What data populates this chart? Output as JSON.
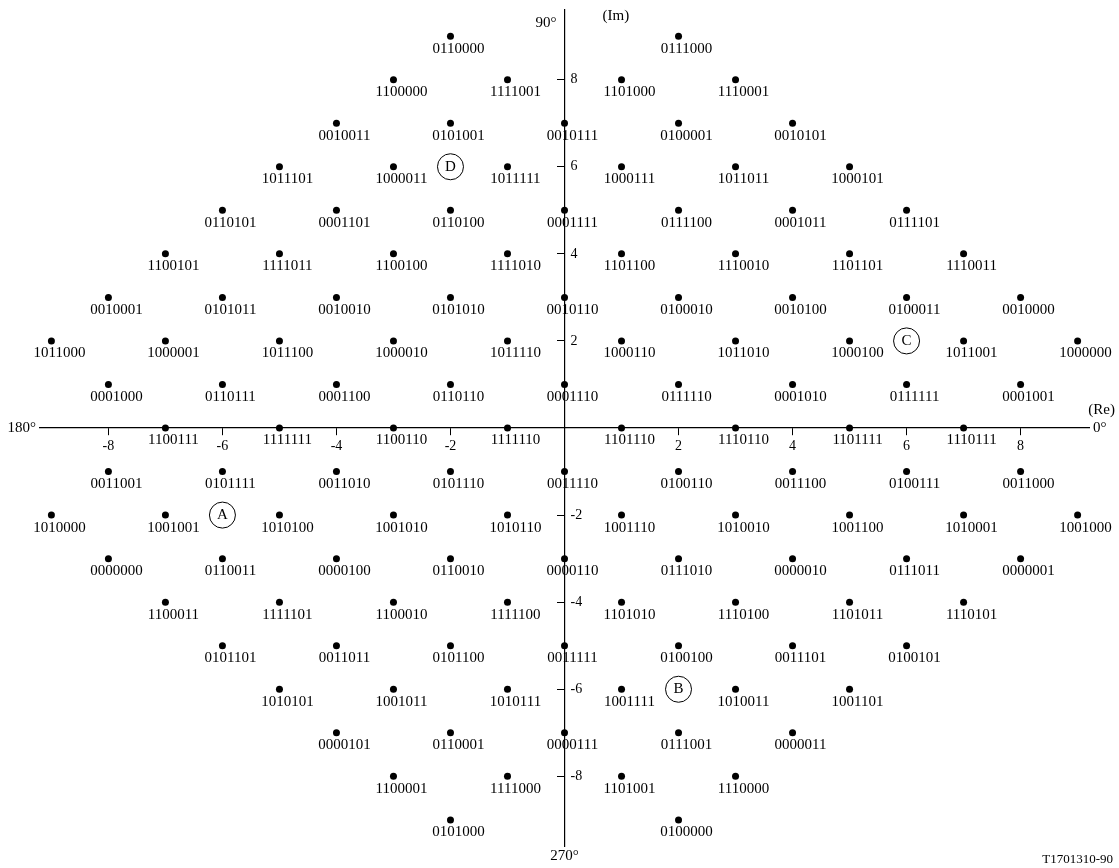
{
  "chart_data": {
    "type": "scatter",
    "xlabel": "(Re)",
    "ylabel": "(Im)",
    "color": "#000000",
    "marker": "circle",
    "xlim": [
      -9.2,
      9.2
    ],
    "ylim": [
      -9.6,
      9.6
    ],
    "xticks": [
      -8,
      -6,
      -4,
      -2,
      2,
      4,
      6,
      8
    ],
    "yticks": [
      -8,
      -6,
      -4,
      -2,
      2,
      4,
      6,
      8
    ],
    "annotations": [
      "90°",
      "180°",
      "0°",
      "270°",
      {
        "text": "A",
        "x": -6,
        "y": -2
      },
      {
        "text": "B",
        "x": 2,
        "y": -6
      },
      {
        "text": "C",
        "x": 6,
        "y": 2
      },
      {
        "text": "D",
        "x": -2,
        "y": 6
      },
      "T1701310-90"
    ],
    "series": [
      {
        "name": "0110000",
        "x": [
          -2
        ],
        "values": [
          9
        ]
      },
      {
        "name": "0111000",
        "x": [
          2
        ],
        "values": [
          9
        ]
      },
      {
        "name": "1100000",
        "x": [
          -3
        ],
        "values": [
          8
        ]
      },
      {
        "name": "1111001",
        "x": [
          -1
        ],
        "values": [
          8
        ]
      },
      {
        "name": "1101000",
        "x": [
          1
        ],
        "values": [
          8
        ]
      },
      {
        "name": "1110001",
        "x": [
          3
        ],
        "values": [
          8
        ]
      },
      {
        "name": "0010011",
        "x": [
          -4
        ],
        "values": [
          7
        ]
      },
      {
        "name": "0101001",
        "x": [
          -2
        ],
        "values": [
          7
        ]
      },
      {
        "name": "0010111",
        "x": [
          0
        ],
        "values": [
          7
        ]
      },
      {
        "name": "0100001",
        "x": [
          2
        ],
        "values": [
          7
        ]
      },
      {
        "name": "0010101",
        "x": [
          4
        ],
        "values": [
          7
        ]
      },
      {
        "name": "1011101",
        "x": [
          -5
        ],
        "values": [
          6
        ]
      },
      {
        "name": "1000011",
        "x": [
          -3
        ],
        "values": [
          6
        ]
      },
      {
        "name": "1011111",
        "x": [
          -1
        ],
        "values": [
          6
        ]
      },
      {
        "name": "1000111",
        "x": [
          1
        ],
        "values": [
          6
        ]
      },
      {
        "name": "1011011",
        "x": [
          3
        ],
        "values": [
          6
        ]
      },
      {
        "name": "1000101",
        "x": [
          5
        ],
        "values": [
          6
        ]
      },
      {
        "name": "0110101",
        "x": [
          -6
        ],
        "values": [
          5
        ]
      },
      {
        "name": "0001101",
        "x": [
          -4
        ],
        "values": [
          5
        ]
      },
      {
        "name": "0110100",
        "x": [
          -2
        ],
        "values": [
          5
        ]
      },
      {
        "name": "0001111",
        "x": [
          0
        ],
        "values": [
          5
        ]
      },
      {
        "name": "0111100",
        "x": [
          2
        ],
        "values": [
          5
        ]
      },
      {
        "name": "0001011",
        "x": [
          4
        ],
        "values": [
          5
        ]
      },
      {
        "name": "0111101",
        "x": [
          6
        ],
        "values": [
          5
        ]
      },
      {
        "name": "1100101",
        "x": [
          -7
        ],
        "values": [
          4
        ]
      },
      {
        "name": "1111011",
        "x": [
          -5
        ],
        "values": [
          4
        ]
      },
      {
        "name": "1100100",
        "x": [
          -3
        ],
        "values": [
          4
        ]
      },
      {
        "name": "1111010",
        "x": [
          -1
        ],
        "values": [
          4
        ]
      },
      {
        "name": "1101100",
        "x": [
          1
        ],
        "values": [
          4
        ]
      },
      {
        "name": "1110010",
        "x": [
          3
        ],
        "values": [
          4
        ]
      },
      {
        "name": "1101101",
        "x": [
          5
        ],
        "values": [
          4
        ]
      },
      {
        "name": "1110011",
        "x": [
          7
        ],
        "values": [
          4
        ]
      },
      {
        "name": "0010001",
        "x": [
          -8
        ],
        "values": [
          3
        ]
      },
      {
        "name": "0101011",
        "x": [
          -6
        ],
        "values": [
          3
        ]
      },
      {
        "name": "0010010",
        "x": [
          -4
        ],
        "values": [
          3
        ]
      },
      {
        "name": "0101010",
        "x": [
          -2
        ],
        "values": [
          3
        ]
      },
      {
        "name": "0010110",
        "x": [
          0
        ],
        "values": [
          3
        ]
      },
      {
        "name": "0100010",
        "x": [
          2
        ],
        "values": [
          3
        ]
      },
      {
        "name": "0010100",
        "x": [
          4
        ],
        "values": [
          3
        ]
      },
      {
        "name": "0100011",
        "x": [
          6
        ],
        "values": [
          3
        ]
      },
      {
        "name": "0010000",
        "x": [
          8
        ],
        "values": [
          3
        ]
      },
      {
        "name": "1011000",
        "x": [
          -9
        ],
        "values": [
          2
        ]
      },
      {
        "name": "1000001",
        "x": [
          -7
        ],
        "values": [
          2
        ]
      },
      {
        "name": "1011100",
        "x": [
          -5
        ],
        "values": [
          2
        ]
      },
      {
        "name": "1000010",
        "x": [
          -3
        ],
        "values": [
          2
        ]
      },
      {
        "name": "1011110",
        "x": [
          -1
        ],
        "values": [
          2
        ]
      },
      {
        "name": "1000110",
        "x": [
          1
        ],
        "values": [
          2
        ]
      },
      {
        "name": "1011010",
        "x": [
          3
        ],
        "values": [
          2
        ]
      },
      {
        "name": "1000100",
        "x": [
          5
        ],
        "values": [
          2
        ]
      },
      {
        "name": "1011001",
        "x": [
          7
        ],
        "values": [
          2
        ]
      },
      {
        "name": "1000000",
        "x": [
          9
        ],
        "values": [
          2
        ]
      },
      {
        "name": "0001000",
        "x": [
          -8
        ],
        "values": [
          1
        ]
      },
      {
        "name": "0110111",
        "x": [
          -6
        ],
        "values": [
          1
        ]
      },
      {
        "name": "0001100",
        "x": [
          -4
        ],
        "values": [
          1
        ]
      },
      {
        "name": "0110110",
        "x": [
          -2
        ],
        "values": [
          1
        ]
      },
      {
        "name": "0001110",
        "x": [
          0
        ],
        "values": [
          1
        ]
      },
      {
        "name": "0111110",
        "x": [
          2
        ],
        "values": [
          1
        ]
      },
      {
        "name": "0001010",
        "x": [
          4
        ],
        "values": [
          1
        ]
      },
      {
        "name": "0111111",
        "x": [
          6
        ],
        "values": [
          1
        ]
      },
      {
        "name": "0001001",
        "x": [
          8
        ],
        "values": [
          1
        ]
      },
      {
        "name": "1100111",
        "x": [
          -7
        ],
        "values": [
          0
        ]
      },
      {
        "name": "1111111",
        "x": [
          -5
        ],
        "values": [
          0
        ]
      },
      {
        "name": "1100110",
        "x": [
          -3
        ],
        "values": [
          0
        ]
      },
      {
        "name": "1111110",
        "x": [
          -1
        ],
        "values": [
          0
        ]
      },
      {
        "name": "1101110",
        "x": [
          1
        ],
        "values": [
          0
        ]
      },
      {
        "name": "1110110",
        "x": [
          3
        ],
        "values": [
          0
        ]
      },
      {
        "name": "1101111",
        "x": [
          5
        ],
        "values": [
          0
        ]
      },
      {
        "name": "1110111",
        "x": [
          7
        ],
        "values": [
          0
        ]
      },
      {
        "name": "0011001",
        "x": [
          -8
        ],
        "values": [
          -1
        ]
      },
      {
        "name": "0101111",
        "x": [
          -6
        ],
        "values": [
          -1
        ]
      },
      {
        "name": "0011010",
        "x": [
          -4
        ],
        "values": [
          -1
        ]
      },
      {
        "name": "0101110",
        "x": [
          -2
        ],
        "values": [
          -1
        ]
      },
      {
        "name": "0011110",
        "x": [
          0
        ],
        "values": [
          -1
        ]
      },
      {
        "name": "0100110",
        "x": [
          2
        ],
        "values": [
          -1
        ]
      },
      {
        "name": "0011100",
        "x": [
          4
        ],
        "values": [
          -1
        ]
      },
      {
        "name": "0100111",
        "x": [
          6
        ],
        "values": [
          -1
        ]
      },
      {
        "name": "0011000",
        "x": [
          8
        ],
        "values": [
          -1
        ]
      },
      {
        "name": "1010000",
        "x": [
          -9
        ],
        "values": [
          -2
        ]
      },
      {
        "name": "1001001",
        "x": [
          -7
        ],
        "values": [
          -2
        ]
      },
      {
        "name": "1010100",
        "x": [
          -5
        ],
        "values": [
          -2
        ]
      },
      {
        "name": "1001010",
        "x": [
          -3
        ],
        "values": [
          -2
        ]
      },
      {
        "name": "1010110",
        "x": [
          -1
        ],
        "values": [
          -2
        ]
      },
      {
        "name": "1001110",
        "x": [
          1
        ],
        "values": [
          -2
        ]
      },
      {
        "name": "1010010",
        "x": [
          3
        ],
        "values": [
          -2
        ]
      },
      {
        "name": "1001100",
        "x": [
          5
        ],
        "values": [
          -2
        ]
      },
      {
        "name": "1010001",
        "x": [
          7
        ],
        "values": [
          -2
        ]
      },
      {
        "name": "1001000",
        "x": [
          9
        ],
        "values": [
          -2
        ]
      },
      {
        "name": "0000000",
        "x": [
          -8
        ],
        "values": [
          -3
        ]
      },
      {
        "name": "0110011",
        "x": [
          -6
        ],
        "values": [
          -3
        ]
      },
      {
        "name": "0000100",
        "x": [
          -4
        ],
        "values": [
          -3
        ]
      },
      {
        "name": "0110010",
        "x": [
          -2
        ],
        "values": [
          -3
        ]
      },
      {
        "name": "0000110",
        "x": [
          0
        ],
        "values": [
          -3
        ]
      },
      {
        "name": "0111010",
        "x": [
          2
        ],
        "values": [
          -3
        ]
      },
      {
        "name": "0000010",
        "x": [
          4
        ],
        "values": [
          -3
        ]
      },
      {
        "name": "0111011",
        "x": [
          6
        ],
        "values": [
          -3
        ]
      },
      {
        "name": "0000001",
        "x": [
          8
        ],
        "values": [
          -3
        ]
      },
      {
        "name": "1100011",
        "x": [
          -7
        ],
        "values": [
          -4
        ]
      },
      {
        "name": "1111101",
        "x": [
          -5
        ],
        "values": [
          -4
        ]
      },
      {
        "name": "1100010",
        "x": [
          -3
        ],
        "values": [
          -4
        ]
      },
      {
        "name": "1111100",
        "x": [
          -1
        ],
        "values": [
          -4
        ]
      },
      {
        "name": "1101010",
        "x": [
          1
        ],
        "values": [
          -4
        ]
      },
      {
        "name": "1110100",
        "x": [
          3
        ],
        "values": [
          -4
        ]
      },
      {
        "name": "1101011",
        "x": [
          5
        ],
        "values": [
          -4
        ]
      },
      {
        "name": "1110101",
        "x": [
          7
        ],
        "values": [
          -4
        ]
      },
      {
        "name": "0101101",
        "x": [
          -6
        ],
        "values": [
          -5
        ]
      },
      {
        "name": "0011011",
        "x": [
          -4
        ],
        "values": [
          -5
        ]
      },
      {
        "name": "0101100",
        "x": [
          -2
        ],
        "values": [
          -5
        ]
      },
      {
        "name": "0011111",
        "x": [
          0
        ],
        "values": [
          -5
        ]
      },
      {
        "name": "0100100",
        "x": [
          2
        ],
        "values": [
          -5
        ]
      },
      {
        "name": "0011101",
        "x": [
          4
        ],
        "values": [
          -5
        ]
      },
      {
        "name": "0100101",
        "x": [
          6
        ],
        "values": [
          -5
        ]
      },
      {
        "name": "1010101",
        "x": [
          -5
        ],
        "values": [
          -6
        ]
      },
      {
        "name": "1001011",
        "x": [
          -3
        ],
        "values": [
          -6
        ]
      },
      {
        "name": "1010111",
        "x": [
          -1
        ],
        "values": [
          -6
        ]
      },
      {
        "name": "1001111",
        "x": [
          1
        ],
        "values": [
          -6
        ]
      },
      {
        "name": "1010011",
        "x": [
          3
        ],
        "values": [
          -6
        ]
      },
      {
        "name": "1001101",
        "x": [
          5
        ],
        "values": [
          -6
        ]
      },
      {
        "name": "0000101",
        "x": [
          -4
        ],
        "values": [
          -7
        ]
      },
      {
        "name": "0110001",
        "x": [
          -2
        ],
        "values": [
          -7
        ]
      },
      {
        "name": "0000111",
        "x": [
          0
        ],
        "values": [
          -7
        ]
      },
      {
        "name": "0111001",
        "x": [
          2
        ],
        "values": [
          -7
        ]
      },
      {
        "name": "0000011",
        "x": [
          4
        ],
        "values": [
          -7
        ]
      },
      {
        "name": "1100001",
        "x": [
          -3
        ],
        "values": [
          -8
        ]
      },
      {
        "name": "1111000",
        "x": [
          -1
        ],
        "values": [
          -8
        ]
      },
      {
        "name": "1101001",
        "x": [
          1
        ],
        "values": [
          -8
        ]
      },
      {
        "name": "1110000",
        "x": [
          3
        ],
        "values": [
          -8
        ]
      },
      {
        "name": "0101000",
        "x": [
          -2
        ],
        "values": [
          -9
        ]
      },
      {
        "name": "0100000",
        "x": [
          2
        ],
        "values": [
          -9
        ]
      }
    ]
  }
}
